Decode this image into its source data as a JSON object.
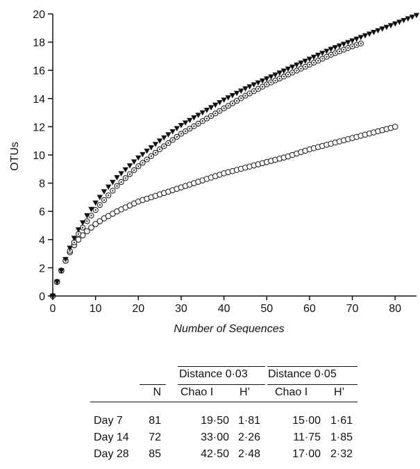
{
  "chart_data": {
    "type": "scatter",
    "xlabel": "Number of Sequences",
    "ylabel": "OTUs",
    "xlim": [
      0,
      85
    ],
    "ylim": [
      0,
      20
    ],
    "x_ticks": [
      "0",
      "10",
      "20",
      "30",
      "40",
      "50",
      "60",
      "70",
      "80"
    ],
    "y_ticks": [
      "0",
      "2",
      "4",
      "6",
      "8",
      "10",
      "12",
      "14",
      "16",
      "18",
      "20"
    ],
    "grid": false,
    "legend": "none",
    "series": [
      {
        "marker": "filled-triangle-down",
        "color": "#111111",
        "points": [
          [
            0,
            0
          ],
          [
            1,
            1
          ],
          [
            2,
            1.8
          ],
          [
            3,
            2.6
          ],
          [
            4,
            3.4
          ],
          [
            5,
            4.1
          ],
          [
            6,
            4.7
          ],
          [
            8,
            5.7
          ],
          [
            10,
            6.6
          ],
          [
            12,
            7.4
          ],
          [
            15,
            8.4
          ],
          [
            20,
            9.8
          ],
          [
            25,
            11.0
          ],
          [
            30,
            12.1
          ],
          [
            35,
            13.0
          ],
          [
            40,
            13.9
          ],
          [
            45,
            14.7
          ],
          [
            50,
            15.4
          ],
          [
            55,
            16.1
          ],
          [
            60,
            16.8
          ],
          [
            65,
            17.5
          ],
          [
            70,
            18.1
          ],
          [
            75,
            18.7
          ],
          [
            80,
            19.3
          ],
          [
            85,
            19.9
          ]
        ]
      },
      {
        "marker": "dotted-circle",
        "color": "#111111",
        "points": [
          [
            0,
            0
          ],
          [
            1,
            1
          ],
          [
            2,
            1.8
          ],
          [
            3,
            2.5
          ],
          [
            4,
            3.2
          ],
          [
            5,
            3.8
          ],
          [
            6,
            4.4
          ],
          [
            8,
            5.3
          ],
          [
            10,
            6.1
          ],
          [
            12,
            6.8
          ],
          [
            15,
            7.8
          ],
          [
            20,
            9.2
          ],
          [
            25,
            10.4
          ],
          [
            30,
            11.5
          ],
          [
            35,
            12.4
          ],
          [
            40,
            13.3
          ],
          [
            45,
            14.2
          ],
          [
            50,
            15.0
          ],
          [
            55,
            15.7
          ],
          [
            60,
            16.4
          ],
          [
            65,
            17.1
          ],
          [
            70,
            17.7
          ],
          [
            72,
            17.9
          ]
        ]
      },
      {
        "marker": "open-circle",
        "color": "#111111",
        "points": [
          [
            0,
            0
          ],
          [
            1,
            1
          ],
          [
            2,
            1.8
          ],
          [
            3,
            2.5
          ],
          [
            4,
            3.1
          ],
          [
            5,
            3.6
          ],
          [
            6,
            4.0
          ],
          [
            8,
            4.6
          ],
          [
            10,
            5.1
          ],
          [
            12,
            5.5
          ],
          [
            15,
            6.0
          ],
          [
            20,
            6.7
          ],
          [
            25,
            7.2
          ],
          [
            30,
            7.7
          ],
          [
            35,
            8.2
          ],
          [
            40,
            8.7
          ],
          [
            45,
            9.1
          ],
          [
            50,
            9.5
          ],
          [
            55,
            9.9
          ],
          [
            60,
            10.4
          ],
          [
            65,
            10.8
          ],
          [
            70,
            11.2
          ],
          [
            75,
            11.6
          ],
          [
            80,
            12.0
          ]
        ]
      }
    ]
  },
  "stats_table": {
    "group_headers": [
      "Distance 0·03",
      "Distance 0·05"
    ],
    "columns": [
      "N",
      "Chao I",
      "H’",
      "Chao I",
      "H’"
    ],
    "rows": [
      {
        "label": "Day 7",
        "n": "81",
        "chao1_003": "19·50",
        "h_003": "1·81",
        "chao1_005": "15·00",
        "h_005": "1·61"
      },
      {
        "label": "Day 14",
        "n": "72",
        "chao1_003": "33·00",
        "h_003": "2·26",
        "chao1_005": "11·75",
        "h_005": "1·85"
      },
      {
        "label": "Day 28",
        "n": "85",
        "chao1_003": "42·50",
        "h_003": "2·48",
        "chao1_005": "17·00",
        "h_005": "2·32"
      }
    ]
  }
}
